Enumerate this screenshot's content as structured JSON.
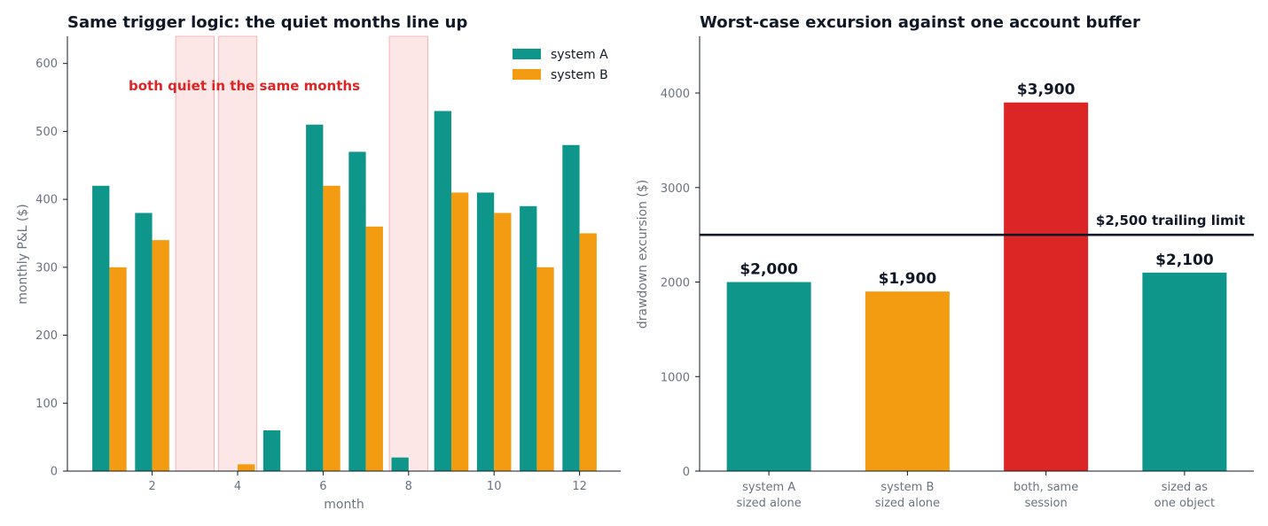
{
  "chart_data": [
    {
      "type": "bar",
      "title": "Same trigger logic: the quiet months line up",
      "xlabel": "month",
      "ylabel": "monthly P&L ($)",
      "x": [
        1,
        2,
        3,
        4,
        5,
        6,
        7,
        8,
        9,
        10,
        11,
        12
      ],
      "x_ticks": [
        2,
        4,
        6,
        8,
        10,
        12
      ],
      "ylim": [
        0,
        640
      ],
      "y_ticks": [
        0,
        100,
        200,
        300,
        400,
        500,
        600
      ],
      "series": [
        {
          "name": "system A",
          "color": "#0f968a",
          "values": [
            420,
            380,
            0,
            0,
            60,
            510,
            470,
            20,
            530,
            410,
            390,
            480
          ]
        },
        {
          "name": "system B",
          "color": "#f39c12",
          "values": [
            300,
            340,
            0,
            10,
            0,
            420,
            360,
            0,
            410,
            380,
            300,
            350
          ]
        }
      ],
      "highlight_months": [
        3,
        4,
        8
      ],
      "highlight_color": "#fde2e2",
      "annotation": "both quiet in the same months",
      "annotation_color": "#dc2626",
      "legend": "top-right",
      "grid": false
    },
    {
      "type": "bar",
      "title": "Worst-case excursion against one account buffer",
      "ylabel": "drawdown excursion ($)",
      "categories": [
        [
          "system A",
          "sized alone"
        ],
        [
          "system B",
          "sized alone"
        ],
        [
          "both, same",
          "session"
        ],
        [
          "sized as",
          "one object"
        ]
      ],
      "values": [
        2000,
        1900,
        3900,
        2100
      ],
      "data_labels": [
        "$2,000",
        "$1,900",
        "$3,900",
        "$2,100"
      ],
      "colors": [
        "#0f968a",
        "#f39c12",
        "#dc2626",
        "#0f968a"
      ],
      "ylim": [
        0,
        4600
      ],
      "y_ticks": [
        0,
        1000,
        2000,
        3000,
        4000
      ],
      "reference_line": {
        "value": 2500,
        "label": "$2,500 trailing limit",
        "color": "#111827"
      },
      "grid": false
    }
  ]
}
